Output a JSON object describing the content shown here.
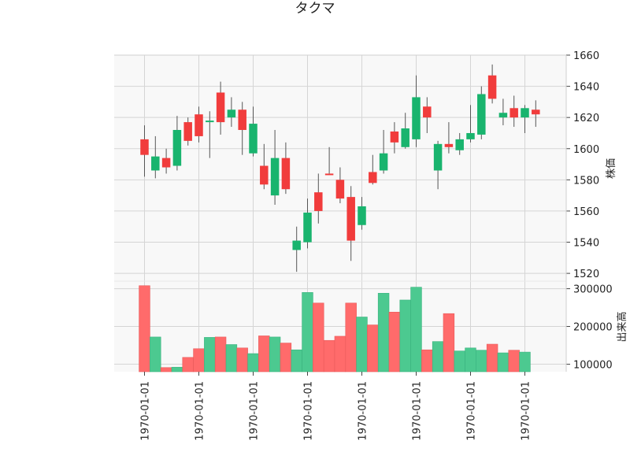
{
  "chart_data": {
    "type": "candlestick",
    "title": "タクマ",
    "price_panel": {
      "ylabel": "株価",
      "ylim": [
        1515,
        1660
      ],
      "yticks": [
        1520,
        1540,
        1560,
        1580,
        1600,
        1620,
        1640,
        1660
      ]
    },
    "volume_panel": {
      "ylabel": "出来高",
      "ylim": [
        80000,
        320000
      ],
      "yticks": [
        100000,
        200000,
        300000
      ],
      "ytick_labels": [
        "100000",
        "200000",
        "300000"
      ]
    },
    "x_tick_labels": [
      "1970-01-01",
      "1970-01-01",
      "1970-01-01",
      "1970-01-01",
      "1970-01-01",
      "1970-01-01",
      "1970-01-01",
      "1970-01-01"
    ],
    "x_tick_bar_index": [
      0,
      5,
      10,
      15,
      20,
      25,
      30,
      35
    ],
    "colors": {
      "up": "#19b46e",
      "down": "#f13c3c",
      "up_volume": "#4cc990",
      "down_volume": "#ff6b6b",
      "panel_bg": "#f8f8f8",
      "grid": "#d5d5d5"
    },
    "candles": [
      {
        "open": 1606,
        "high": 1615,
        "low": 1582,
        "close": 1596,
        "volume": 308000
      },
      {
        "open": 1586,
        "high": 1608,
        "low": 1581,
        "close": 1595,
        "volume": 172000
      },
      {
        "open": 1594,
        "high": 1600,
        "low": 1584,
        "close": 1588,
        "volume": 91000
      },
      {
        "open": 1589,
        "high": 1621,
        "low": 1586,
        "close": 1612,
        "volume": 92000
      },
      {
        "open": 1617,
        "high": 1620,
        "low": 1602,
        "close": 1605,
        "volume": 118000
      },
      {
        "open": 1622,
        "high": 1627,
        "low": 1604,
        "close": 1608,
        "volume": 141000
      },
      {
        "open": 1617,
        "high": 1624,
        "low": 1594,
        "close": 1618,
        "volume": 171000
      },
      {
        "open": 1636,
        "high": 1643,
        "low": 1609,
        "close": 1617,
        "volume": 172000
      },
      {
        "open": 1620,
        "high": 1633,
        "low": 1614,
        "close": 1625,
        "volume": 152000
      },
      {
        "open": 1625,
        "high": 1630,
        "low": 1596,
        "close": 1612,
        "volume": 143000
      },
      {
        "open": 1597,
        "high": 1627,
        "low": 1595,
        "close": 1616,
        "volume": 128000
      },
      {
        "open": 1589,
        "high": 1603,
        "low": 1574,
        "close": 1577,
        "volume": 175000
      },
      {
        "open": 1570,
        "high": 1612,
        "low": 1564,
        "close": 1594,
        "volume": 172000
      },
      {
        "open": 1594,
        "high": 1604,
        "low": 1571,
        "close": 1574,
        "volume": 156000
      },
      {
        "open": 1535,
        "high": 1550,
        "low": 1521,
        "close": 1541,
        "volume": 138000
      },
      {
        "open": 1540,
        "high": 1568,
        "low": 1536,
        "close": 1559,
        "volume": 290000
      },
      {
        "open": 1572,
        "high": 1584,
        "low": 1552,
        "close": 1560,
        "volume": 262000
      },
      {
        "open": 1584,
        "high": 1601,
        "low": 1584,
        "close": 1583,
        "volume": 163000
      },
      {
        "open": 1580,
        "high": 1588,
        "low": 1565,
        "close": 1568,
        "volume": 174000
      },
      {
        "open": 1569,
        "high": 1576,
        "low": 1528,
        "close": 1541,
        "volume": 262000
      },
      {
        "open": 1551,
        "high": 1569,
        "low": 1548,
        "close": 1563,
        "volume": 225000
      },
      {
        "open": 1585,
        "high": 1596,
        "low": 1577,
        "close": 1578,
        "volume": 204000
      },
      {
        "open": 1586,
        "high": 1612,
        "low": 1584,
        "close": 1597,
        "volume": 288000
      },
      {
        "open": 1611,
        "high": 1617,
        "low": 1597,
        "close": 1604,
        "volume": 238000
      },
      {
        "open": 1601,
        "high": 1623,
        "low": 1600,
        "close": 1613,
        "volume": 270000
      },
      {
        "open": 1606,
        "high": 1647,
        "low": 1601,
        "close": 1633,
        "volume": 304000
      },
      {
        "open": 1627,
        "high": 1633,
        "low": 1610,
        "close": 1620,
        "volume": 138000
      },
      {
        "open": 1586,
        "high": 1605,
        "low": 1574,
        "close": 1603,
        "volume": 160000
      },
      {
        "open": 1603,
        "high": 1617,
        "low": 1597,
        "close": 1601,
        "volume": 234000
      },
      {
        "open": 1599,
        "high": 1610,
        "low": 1596,
        "close": 1606,
        "volume": 135000
      },
      {
        "open": 1606,
        "high": 1628,
        "low": 1604,
        "close": 1610,
        "volume": 143000
      },
      {
        "open": 1609,
        "high": 1640,
        "low": 1606,
        "close": 1635,
        "volume": 137000
      },
      {
        "open": 1647,
        "high": 1654,
        "low": 1629,
        "close": 1632,
        "volume": 153000
      },
      {
        "open": 1620,
        "high": 1632,
        "low": 1615,
        "close": 1623,
        "volume": 130000
      },
      {
        "open": 1626,
        "high": 1634,
        "low": 1614,
        "close": 1620,
        "volume": 137000
      },
      {
        "open": 1620,
        "high": 1628,
        "low": 1610,
        "close": 1626,
        "volume": 132000
      },
      {
        "open": 1625,
        "high": 1631,
        "low": 1614,
        "close": 1622,
        "volume": 73000
      }
    ]
  }
}
